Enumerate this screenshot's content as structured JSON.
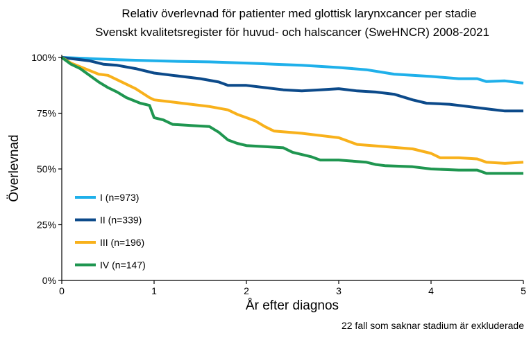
{
  "chart_data": {
    "type": "line",
    "title": "Relativ överlevnad för patienter med glottisk larynxcancer per stadie",
    "subtitle": "Svenskt kvalitetsregister för huvud- och halscancer (SweHNCR) 2008-2021",
    "xlabel": "År efter diagnos",
    "ylabel": "Överlevnad",
    "footnote": "22 fall som saknar stadium är exkluderade",
    "xlim": [
      0,
      5
    ],
    "ylim": [
      0,
      1
    ],
    "x_ticks": [
      0,
      1,
      2,
      3,
      4,
      5
    ],
    "x_tick_labels": [
      "0",
      "1",
      "2",
      "3",
      "4",
      "5"
    ],
    "y_ticks": [
      0,
      0.25,
      0.5,
      0.75,
      1
    ],
    "y_tick_labels": [
      "0%",
      "25%",
      "50%",
      "75%",
      "100%"
    ],
    "grid": false,
    "legend_position": "left",
    "series": [
      {
        "name": "I (n=973)",
        "color": "#1fb0ea",
        "points": [
          [
            0,
            1.0
          ],
          [
            0.3,
            0.995
          ],
          [
            0.6,
            0.99
          ],
          [
            1.0,
            0.985
          ],
          [
            1.3,
            0.982
          ],
          [
            1.6,
            0.98
          ],
          [
            2.0,
            0.975
          ],
          [
            2.3,
            0.97
          ],
          [
            2.6,
            0.965
          ],
          [
            3.0,
            0.955
          ],
          [
            3.3,
            0.945
          ],
          [
            3.6,
            0.925
          ],
          [
            4.0,
            0.915
          ],
          [
            4.3,
            0.905
          ],
          [
            4.5,
            0.905
          ],
          [
            4.6,
            0.892
          ],
          [
            4.8,
            0.895
          ],
          [
            5.0,
            0.885
          ]
        ]
      },
      {
        "name": "II (n=339)",
        "color": "#0c4a8a",
        "points": [
          [
            0,
            1.0
          ],
          [
            0.1,
            0.995
          ],
          [
            0.3,
            0.985
          ],
          [
            0.45,
            0.97
          ],
          [
            0.6,
            0.965
          ],
          [
            0.8,
            0.95
          ],
          [
            1.0,
            0.93
          ],
          [
            1.2,
            0.92
          ],
          [
            1.5,
            0.905
          ],
          [
            1.7,
            0.89
          ],
          [
            1.8,
            0.875
          ],
          [
            2.0,
            0.875
          ],
          [
            2.2,
            0.865
          ],
          [
            2.4,
            0.855
          ],
          [
            2.6,
            0.85
          ],
          [
            2.8,
            0.855
          ],
          [
            3.0,
            0.86
          ],
          [
            3.2,
            0.85
          ],
          [
            3.4,
            0.845
          ],
          [
            3.6,
            0.835
          ],
          [
            3.8,
            0.81
          ],
          [
            3.95,
            0.795
          ],
          [
            4.2,
            0.79
          ],
          [
            4.4,
            0.78
          ],
          [
            4.6,
            0.77
          ],
          [
            4.8,
            0.76
          ],
          [
            5.0,
            0.76
          ]
        ]
      },
      {
        "name": "III (n=196)",
        "color": "#f8b11b",
        "points": [
          [
            0,
            1.0
          ],
          [
            0.1,
            0.975
          ],
          [
            0.25,
            0.95
          ],
          [
            0.4,
            0.925
          ],
          [
            0.5,
            0.92
          ],
          [
            0.6,
            0.9
          ],
          [
            0.8,
            0.86
          ],
          [
            0.95,
            0.82
          ],
          [
            1.0,
            0.81
          ],
          [
            1.2,
            0.8
          ],
          [
            1.4,
            0.79
          ],
          [
            1.6,
            0.78
          ],
          [
            1.8,
            0.765
          ],
          [
            1.9,
            0.745
          ],
          [
            2.0,
            0.73
          ],
          [
            2.1,
            0.715
          ],
          [
            2.2,
            0.69
          ],
          [
            2.3,
            0.67
          ],
          [
            2.6,
            0.66
          ],
          [
            2.8,
            0.65
          ],
          [
            3.0,
            0.64
          ],
          [
            3.1,
            0.625
          ],
          [
            3.2,
            0.61
          ],
          [
            3.5,
            0.6
          ],
          [
            3.8,
            0.59
          ],
          [
            4.0,
            0.57
          ],
          [
            4.1,
            0.55
          ],
          [
            4.3,
            0.55
          ],
          [
            4.5,
            0.545
          ],
          [
            4.6,
            0.53
          ],
          [
            4.8,
            0.525
          ],
          [
            5.0,
            0.53
          ]
        ]
      },
      {
        "name": "IV (n=147)",
        "color": "#1f9650",
        "points": [
          [
            0,
            1.0
          ],
          [
            0.1,
            0.97
          ],
          [
            0.2,
            0.95
          ],
          [
            0.3,
            0.92
          ],
          [
            0.4,
            0.89
          ],
          [
            0.5,
            0.865
          ],
          [
            0.6,
            0.845
          ],
          [
            0.7,
            0.82
          ],
          [
            0.85,
            0.795
          ],
          [
            0.95,
            0.785
          ],
          [
            1.0,
            0.73
          ],
          [
            1.1,
            0.72
          ],
          [
            1.2,
            0.7
          ],
          [
            1.4,
            0.695
          ],
          [
            1.6,
            0.69
          ],
          [
            1.7,
            0.665
          ],
          [
            1.8,
            0.63
          ],
          [
            1.9,
            0.615
          ],
          [
            2.0,
            0.605
          ],
          [
            2.2,
            0.6
          ],
          [
            2.4,
            0.595
          ],
          [
            2.5,
            0.575
          ],
          [
            2.7,
            0.555
          ],
          [
            2.8,
            0.54
          ],
          [
            3.0,
            0.54
          ],
          [
            3.3,
            0.53
          ],
          [
            3.4,
            0.52
          ],
          [
            3.5,
            0.515
          ],
          [
            3.8,
            0.51
          ],
          [
            4.0,
            0.5
          ],
          [
            4.3,
            0.495
          ],
          [
            4.5,
            0.495
          ],
          [
            4.6,
            0.48
          ],
          [
            5.0,
            0.48
          ]
        ]
      }
    ]
  }
}
